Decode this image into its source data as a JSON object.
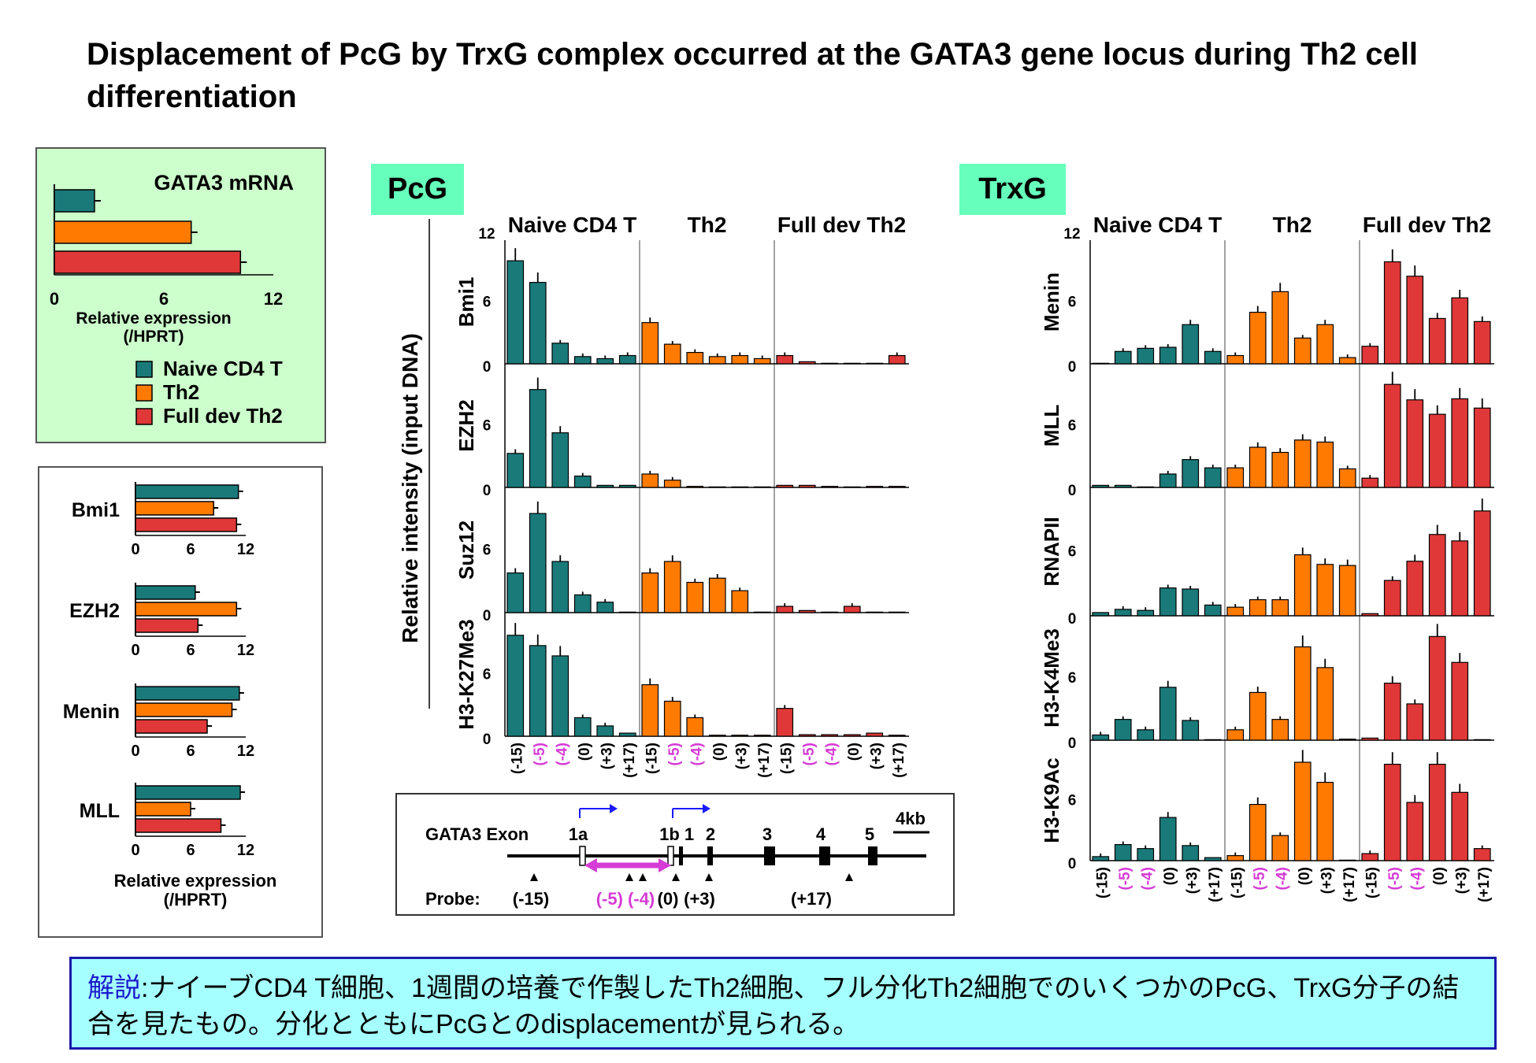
{
  "title": "Displacement of PcG by TrxG complex occurred at the GATA3 gene locus during Th2 cell differentiation",
  "colors": {
    "naive": "#1a7a7a",
    "th2": "#ff7a00",
    "full": "#e03838",
    "tag": "#66ffbb",
    "magenta": "#d63cd6",
    "arrow": "#1a1aff"
  },
  "groups": [
    "Naive CD4 T",
    "Th2",
    "Full dev Th2"
  ],
  "mrna_panel": {
    "title": "GATA3 mRNA",
    "xlabel": "Relative expression",
    "xlabel2": "(/HPRT)",
    "ticks": [
      "0",
      "6",
      "12"
    ]
  },
  "legend": [
    "Naive CD4 T",
    "Th2",
    "Full dev Th2"
  ],
  "factor_panel": {
    "xlabel": "Relative expression",
    "xlabel2": "(/HPRT)",
    "ticks": [
      "0",
      "6",
      "12"
    ]
  },
  "pcg": {
    "tag": "PcG",
    "ylabel": "Relative intensity (input DNA)"
  },
  "trxg": {
    "tag": "TrxG"
  },
  "yticks": [
    "12",
    "6",
    "0"
  ],
  "probe_labels": [
    "(-15)",
    "(-5)",
    "(-4)",
    "(0)",
    "(+3)",
    "(+17)"
  ],
  "gene_map": {
    "exon_label": "GATA3 Exon",
    "exons": [
      "1a",
      "1b",
      "1",
      "2",
      "3",
      "4",
      "5"
    ],
    "scale": "4kb",
    "probe_label": "Probe:",
    "probes": [
      "(-15)",
      "(-5) (-4)",
      "(0)",
      "(+3)",
      "(+17)"
    ]
  },
  "note": {
    "lead": "解説",
    "body": ":ナイーブCD4 T細胞、1週間の培養で作製したTh2細胞、フル分化Th2細胞でのいくつかのPcG、TrxG分子の結合を見たもの。分化とともにPcGとのdisplacementが見られる。"
  },
  "chart_data": [
    {
      "type": "bar",
      "title": "GATA3 mRNA",
      "orientation": "horizontal",
      "categories": [
        "Naive CD4 T",
        "Th2",
        "Full dev Th2"
      ],
      "values": [
        2.2,
        7.5,
        10.2
      ],
      "xlim": [
        0,
        12
      ],
      "xlabel": "Relative expression (/HPRT)"
    },
    {
      "type": "bar",
      "orientation": "horizontal",
      "categories": [
        "Bmi1",
        "EZH2",
        "Menin",
        "MLL"
      ],
      "series": [
        {
          "name": "Naive CD4 T",
          "values": [
            11.2,
            6.5,
            11.3,
            11.4
          ]
        },
        {
          "name": "Th2",
          "values": [
            8.5,
            11.0,
            10.5,
            6.0
          ]
        },
        {
          "name": "Full dev Th2",
          "values": [
            11.0,
            6.8,
            7.8,
            9.3
          ]
        }
      ],
      "xlim": [
        0,
        12
      ],
      "xlabel": "Relative expression (/HPRT)"
    },
    {
      "type": "bar",
      "group": "PcG",
      "ylim": [
        0,
        12
      ],
      "ylabel": "Relative intensity (input DNA)",
      "x": [
        "(-15)",
        "(-5)",
        "(-4)",
        "(0)",
        "(+3)",
        "(+17)"
      ],
      "panels": [
        {
          "name": "Bmi1",
          "series": [
            {
              "name": "Naive CD4 T",
              "values": [
                10,
                7.9,
                2,
                0.7,
                0.5,
                0.8
              ]
            },
            {
              "name": "Th2",
              "values": [
                4,
                1.9,
                1.1,
                0.7,
                0.8,
                0.5
              ]
            },
            {
              "name": "Full dev Th2",
              "values": [
                0.8,
                0.2,
                0.05,
                0.05,
                0.05,
                0.8
              ]
            }
          ]
        },
        {
          "name": "EZH2",
          "series": [
            {
              "name": "Naive CD4 T",
              "values": [
                3.3,
                9.5,
                5.3,
                1.1,
                0.2,
                0.2
              ]
            },
            {
              "name": "Th2",
              "values": [
                1.3,
                0.7,
                0.1,
                0.05,
                0.05,
                0.05
              ]
            },
            {
              "name": "Full dev Th2",
              "values": [
                0.2,
                0.2,
                0.1,
                0.05,
                0.1,
                0.1
              ]
            }
          ]
        },
        {
          "name": "Suz12",
          "series": [
            {
              "name": "Naive CD4 T",
              "values": [
                3.8,
                9.5,
                4.9,
                1.7,
                1.0,
                0.05
              ]
            },
            {
              "name": "Th2",
              "values": [
                3.8,
                4.9,
                2.9,
                3.3,
                2.1,
                0.05
              ]
            },
            {
              "name": "Full dev Th2",
              "values": [
                0.6,
                0.2,
                0.05,
                0.6,
                0.05,
                0.05
              ]
            }
          ]
        },
        {
          "name": "H3-K27Me3",
          "series": [
            {
              "name": "Naive CD4 T",
              "values": [
                9.8,
                8.8,
                7.8,
                1.8,
                1.0,
                0.3
              ]
            },
            {
              "name": "Th2",
              "values": [
                5.0,
                3.4,
                1.8,
                0.1,
                0.1,
                0.1
              ]
            },
            {
              "name": "Full dev Th2",
              "values": [
                2.7,
                0.15,
                0.15,
                0.15,
                0.3,
                0.1
              ]
            }
          ]
        }
      ]
    },
    {
      "type": "bar",
      "group": "TrxG",
      "ylim": [
        0,
        12
      ],
      "x": [
        "(-15)",
        "(-5)",
        "(-4)",
        "(0)",
        "(+3)",
        "(+17)"
      ],
      "panels": [
        {
          "name": "Menin",
          "series": [
            {
              "name": "Naive CD4 T",
              "values": [
                0.05,
                1.2,
                1.5,
                1.6,
                3.8,
                1.2
              ]
            },
            {
              "name": "Th2",
              "values": [
                0.8,
                5.0,
                7.0,
                2.5,
                3.8,
                0.6
              ]
            },
            {
              "name": "Full dev Th2",
              "values": [
                1.7,
                9.9,
                8.5,
                4.4,
                6.4,
                4.1
              ]
            }
          ]
        },
        {
          "name": "MLL",
          "series": [
            {
              "name": "Naive CD4 T",
              "values": [
                0.2,
                0.2,
                0.05,
                1.3,
                2.7,
                1.9
              ]
            },
            {
              "name": "Th2",
              "values": [
                1.9,
                3.9,
                3.4,
                4.6,
                4.4,
                1.8
              ]
            },
            {
              "name": "Full dev Th2",
              "values": [
                0.9,
                10.0,
                8.5,
                7.1,
                8.6,
                7.7
              ]
            }
          ]
        },
        {
          "name": "RNAPII",
          "series": [
            {
              "name": "Naive CD4 T",
              "values": [
                0.3,
                0.6,
                0.5,
                2.6,
                2.5,
                1.0
              ]
            },
            {
              "name": "Th2",
              "values": [
                0.8,
                1.5,
                1.5,
                5.7,
                4.8,
                4.7
              ]
            },
            {
              "name": "Full dev Th2",
              "values": [
                0.2,
                3.3,
                5.1,
                7.6,
                7.0,
                9.8
              ]
            }
          ]
        },
        {
          "name": "H3-K4Me3",
          "series": [
            {
              "name": "Naive CD4 T",
              "values": [
                0.5,
                2.0,
                1.0,
                5.1,
                1.9,
                0.05
              ]
            },
            {
              "name": "Th2",
              "values": [
                1.0,
                4.6,
                2.0,
                9.0,
                7.0,
                0.1
              ]
            },
            {
              "name": "Full dev Th2",
              "values": [
                0.2,
                5.5,
                3.5,
                10.0,
                7.5,
                0.05
              ]
            }
          ]
        },
        {
          "name": "H3-K9Ac",
          "series": [
            {
              "name": "Naive CD4 T",
              "values": [
                0.4,
                1.6,
                1.2,
                4.3,
                1.5,
                0.3
              ]
            },
            {
              "name": "Th2",
              "values": [
                0.5,
                5.6,
                2.5,
                9.8,
                7.8,
                0.05
              ]
            },
            {
              "name": "Full dev Th2",
              "values": [
                0.7,
                9.6,
                5.8,
                9.6,
                6.8,
                1.2
              ]
            }
          ]
        }
      ]
    }
  ]
}
